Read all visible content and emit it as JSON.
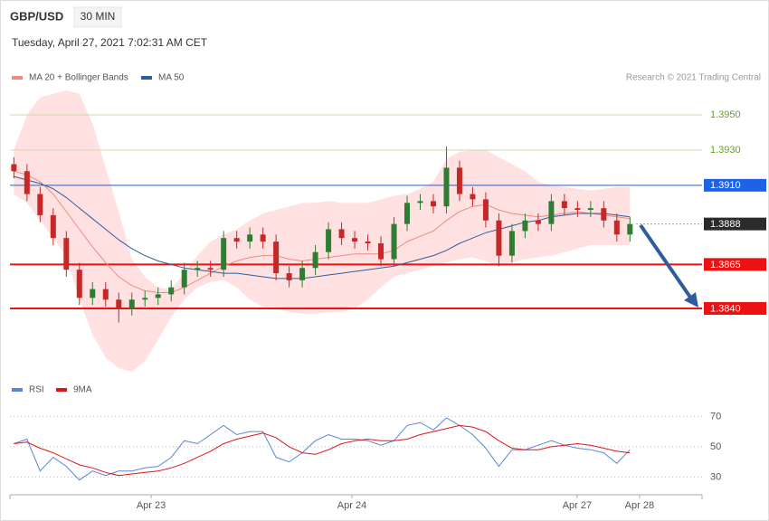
{
  "header": {
    "symbol": "GBP/USD",
    "interval": "30 MIN",
    "datetime": "Tuesday, April 27, 2021 7:02:31 AM CET",
    "credit": "Research © 2021 Trading Central"
  },
  "chart_data": [
    {
      "type": "candlestick",
      "xlim": [
        -0.3,
        52.5
      ],
      "ylim": [
        1.38,
        1.3966
      ],
      "up_color": "#2e7d32",
      "down_color": "#c62828",
      "open": [
        1.3922,
        1.3918,
        1.3905,
        1.3893,
        1.388,
        1.3862,
        1.3846,
        1.3851,
        1.3845,
        1.384,
        1.3845,
        1.3846,
        1.3848,
        1.3852,
        1.3862,
        1.3863,
        1.3862,
        1.388,
        1.3878,
        1.3882,
        1.3878,
        1.386,
        1.3856,
        1.3863,
        1.3872,
        1.3885,
        1.388,
        1.3878,
        1.3877,
        1.3868,
        1.3888,
        1.39,
        1.3901,
        1.3898,
        1.392,
        1.3905,
        1.3902,
        1.389,
        1.387,
        1.3884,
        1.389,
        1.3888,
        1.3901,
        1.3897,
        1.3896,
        1.3897,
        1.389,
        1.3882
      ],
      "high": [
        1.3926,
        1.3922,
        1.3909,
        1.3897,
        1.3884,
        1.3866,
        1.3855,
        1.3855,
        1.3849,
        1.3849,
        1.385,
        1.3852,
        1.3856,
        1.3866,
        1.3867,
        1.3867,
        1.3884,
        1.3884,
        1.3886,
        1.3886,
        1.3882,
        1.3864,
        1.3867,
        1.3876,
        1.3889,
        1.3889,
        1.3884,
        1.3882,
        1.3881,
        1.3892,
        1.3904,
        1.3905,
        1.3905,
        1.3932,
        1.3924,
        1.3909,
        1.3906,
        1.3894,
        1.3888,
        1.3894,
        1.3894,
        1.3905,
        1.3905,
        1.3901,
        1.3901,
        1.3901,
        1.3894,
        1.3892
      ],
      "low": [
        1.3914,
        1.3901,
        1.3889,
        1.3876,
        1.3858,
        1.3842,
        1.3842,
        1.3841,
        1.3832,
        1.3836,
        1.3841,
        1.3842,
        1.3844,
        1.3848,
        1.3858,
        1.3858,
        1.3858,
        1.3874,
        1.3874,
        1.3874,
        1.3856,
        1.3852,
        1.3852,
        1.3859,
        1.3868,
        1.3876,
        1.3874,
        1.3873,
        1.3864,
        1.3864,
        1.3884,
        1.3896,
        1.3894,
        1.3894,
        1.3901,
        1.3898,
        1.3886,
        1.3864,
        1.3866,
        1.388,
        1.3884,
        1.3884,
        1.3893,
        1.3892,
        1.3892,
        1.3886,
        1.3878,
        1.3878
      ],
      "close": [
        1.3918,
        1.3905,
        1.3893,
        1.388,
        1.3862,
        1.3846,
        1.3851,
        1.3845,
        1.384,
        1.3845,
        1.3846,
        1.3848,
        1.3852,
        1.3862,
        1.3863,
        1.3862,
        1.388,
        1.3878,
        1.3882,
        1.3878,
        1.386,
        1.3856,
        1.3863,
        1.3872,
        1.3885,
        1.388,
        1.3878,
        1.3877,
        1.3868,
        1.3888,
        1.39,
        1.3901,
        1.3898,
        1.392,
        1.3905,
        1.3902,
        1.389,
        1.387,
        1.3884,
        1.389,
        1.3888,
        1.3901,
        1.3897,
        1.3896,
        1.3897,
        1.389,
        1.3882,
        1.3888
      ],
      "series": [
        {
          "name": "MA 20 + Bollinger Bands",
          "color": "#f08a80",
          "band_color": "#ffe1e1",
          "values": [
            1.3918,
            1.3916,
            1.3912,
            1.3905,
            1.3895,
            1.3885,
            1.3875,
            1.3866,
            1.3858,
            1.3853,
            1.385,
            1.3849,
            1.3849,
            1.3852,
            1.3856,
            1.386,
            1.3864,
            1.3867,
            1.3869,
            1.387,
            1.387,
            1.3868,
            1.3867,
            1.3868,
            1.3869,
            1.387,
            1.3871,
            1.3871,
            1.3871,
            1.3873,
            1.3878,
            1.3881,
            1.3884,
            1.389,
            1.3895,
            1.3898,
            1.3899,
            1.3896,
            1.3894,
            1.3893,
            1.3892,
            1.3893,
            1.3894,
            1.3895,
            1.3894,
            1.3893,
            1.3892,
            1.3891
          ],
          "upper": [
            1.393,
            1.395,
            1.396,
            1.3962,
            1.3964,
            1.3962,
            1.3945,
            1.392,
            1.3895,
            1.3868,
            1.3858,
            1.3852,
            1.3851,
            1.386,
            1.387,
            1.3878,
            1.3882,
            1.3885,
            1.389,
            1.3894,
            1.3896,
            1.3898,
            1.39,
            1.39,
            1.3901,
            1.39,
            1.39,
            1.39,
            1.3902,
            1.3904,
            1.3905,
            1.3908,
            1.3912,
            1.3925,
            1.3929,
            1.393,
            1.393,
            1.3926,
            1.3922,
            1.3918,
            1.3912,
            1.391,
            1.3909,
            1.3908,
            1.3907,
            1.3908,
            1.3909,
            1.3909
          ],
          "lower": [
            1.3905,
            1.39,
            1.389,
            1.388,
            1.387,
            1.3845,
            1.3825,
            1.3812,
            1.3806,
            1.3804,
            1.381,
            1.3822,
            1.3835,
            1.3845,
            1.3852,
            1.3855,
            1.3856,
            1.3852,
            1.3845,
            1.3841,
            1.384,
            1.3838,
            1.3837,
            1.3837,
            1.3838,
            1.3838,
            1.384,
            1.3845,
            1.3852,
            1.3858,
            1.386,
            1.3862,
            1.3864,
            1.3866,
            1.3868,
            1.3869,
            1.3867,
            1.3864,
            1.3866,
            1.3868,
            1.3869,
            1.387,
            1.3872,
            1.3874,
            1.3876,
            1.3876,
            1.3876,
            1.3876
          ]
        },
        {
          "name": "MA 50",
          "color": "#2f5d9b",
          "values": [
            1.3915,
            1.3913,
            1.3911,
            1.3908,
            1.3903,
            1.3897,
            1.3891,
            1.3885,
            1.3879,
            1.3874,
            1.387,
            1.3867,
            1.3865,
            1.3863,
            1.3862,
            1.3861,
            1.386,
            1.386,
            1.3859,
            1.3858,
            1.3857,
            1.3857,
            1.3857,
            1.3858,
            1.3859,
            1.386,
            1.3861,
            1.3862,
            1.3863,
            1.3864,
            1.3866,
            1.3868,
            1.387,
            1.3873,
            1.3877,
            1.388,
            1.3883,
            1.3885,
            1.3887,
            1.3889,
            1.389,
            1.3892,
            1.3893,
            1.3894,
            1.3894,
            1.3894,
            1.3893,
            1.3892
          ]
        }
      ],
      "levels": [
        {
          "value": 1.395,
          "label": "1.3950",
          "color": "#6aa121",
          "line_color": "#c9dca6",
          "style": "text",
          "line": "solid"
        },
        {
          "value": 1.393,
          "label": "1.3930",
          "color": "#6aa121",
          "line_color": "#c9dca6",
          "style": "text",
          "line": "solid"
        },
        {
          "value": 1.391,
          "label": "1.3910",
          "color": "#1e62e6",
          "line_color": "#2a5fb0",
          "style": "box",
          "line": "solid"
        },
        {
          "value": 1.3888,
          "label": "1.3888",
          "color": "#2b2b2b",
          "line_color": "#333333",
          "style": "box",
          "line": "dotted"
        },
        {
          "value": 1.3865,
          "label": "1.3865",
          "color": "#ee1111",
          "line_color": "#ee1111",
          "style": "box",
          "line": "thick"
        },
        {
          "value": 1.384,
          "label": "1.3840",
          "color": "#ee1111",
          "line_color": "#ee1111",
          "style": "box",
          "line": "thick"
        }
      ]
    },
    {
      "type": "line",
      "xlim": [
        -0.3,
        52.5
      ],
      "ylim": [
        20,
        75
      ],
      "yticks": [
        30,
        50,
        70
      ],
      "xticks": [
        {
          "value": 10.47,
          "label": "Apr 23"
        },
        {
          "value": 25.79,
          "label": "Apr 24"
        },
        {
          "value": 42.97,
          "label": "Apr 27"
        },
        {
          "value": 47.73,
          "label": "Apr 28"
        }
      ],
      "series": [
        {
          "name": "RSI",
          "color": "#5b84d6",
          "values": [
            52,
            55,
            34,
            43,
            37,
            28,
            34,
            31,
            34,
            34,
            36,
            37,
            43,
            54,
            52,
            58,
            64,
            58,
            60,
            60,
            43,
            40,
            46,
            54,
            58,
            55,
            55,
            54,
            51,
            54,
            64,
            66,
            61,
            69,
            64,
            58,
            49,
            37,
            48,
            48,
            51,
            54,
            51,
            49,
            48,
            46,
            39,
            48
          ]
        },
        {
          "name": "9MA",
          "color": "#e01515",
          "values": [
            52,
            53,
            49,
            46,
            42,
            38,
            36,
            33,
            31,
            32,
            33,
            34,
            36,
            39,
            43,
            47,
            52,
            55,
            57,
            59,
            56,
            50,
            46,
            45,
            48,
            52,
            54,
            55,
            54,
            54,
            55,
            58,
            60,
            62,
            64,
            63,
            60,
            54,
            49,
            48,
            48,
            50,
            51,
            52,
            51,
            49,
            47,
            46
          ]
        }
      ]
    }
  ]
}
